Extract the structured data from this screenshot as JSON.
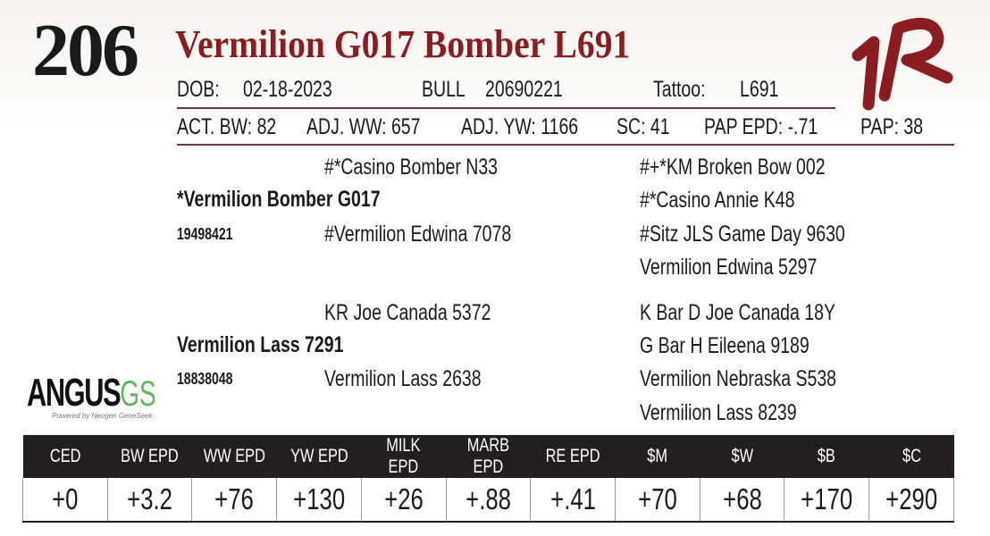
{
  "lot_number": "206",
  "name": "Vermilion G017 Bomber L691",
  "info": {
    "dob_label": "DOB:",
    "dob": "02-18-2023",
    "sex": "BULL",
    "registration": "20690221",
    "tattoo_label": "Tattoo:",
    "tattoo": "L691"
  },
  "stats": [
    "ACT. BW: 82",
    "ADJ. WW: 657",
    "ADJ. YW: 1166",
    "SC: 41",
    "PAP EPD: -.71",
    "PAP: 38"
  ],
  "pedigree": {
    "sire": {
      "name": "*Vermilion Bomber G017",
      "reg": "19498421",
      "sire": "#*Casino Bomber N33",
      "dam": "#Vermilion Edwina 7078",
      "ss": "#+*KM Broken Bow 002",
      "sd": "#*Casino Annie K48",
      "ds": "#Sitz JLS Game Day 9630",
      "dd": "Vermilion Edwina 5297"
    },
    "dam": {
      "name": "Vermilion Lass 7291",
      "reg": "18838048",
      "sire": "KR Joe Canada 5372",
      "dam": "Vermilion Lass 2638",
      "ss": "K Bar D Joe Canada 18Y",
      "sd": "G Bar H Eileena 9189",
      "ds": "Vermilion Nebraska S538",
      "dd": "Vermilion Lass 8239"
    }
  },
  "logos": {
    "brand": "VR",
    "angus": "ANGUS",
    "gs": "GS",
    "angus_tagline": "Powered by Neogen GeneSeek"
  },
  "epd": {
    "headers": [
      "CED",
      "BW EPD",
      "WW EPD",
      "YW EPD",
      "MILK EPD",
      "MARB EPD",
      "RE EPD",
      "$M",
      "$W",
      "$B",
      "$C"
    ],
    "values": [
      "+0",
      "+3.2",
      "+76",
      "+130",
      "+26",
      "+.88",
      "+.41",
      "+70",
      "+68",
      "+170",
      "+290"
    ]
  },
  "colors": {
    "title": "#8b1c1f",
    "header_bg": "#231f20",
    "gs": "#5cb85c"
  }
}
